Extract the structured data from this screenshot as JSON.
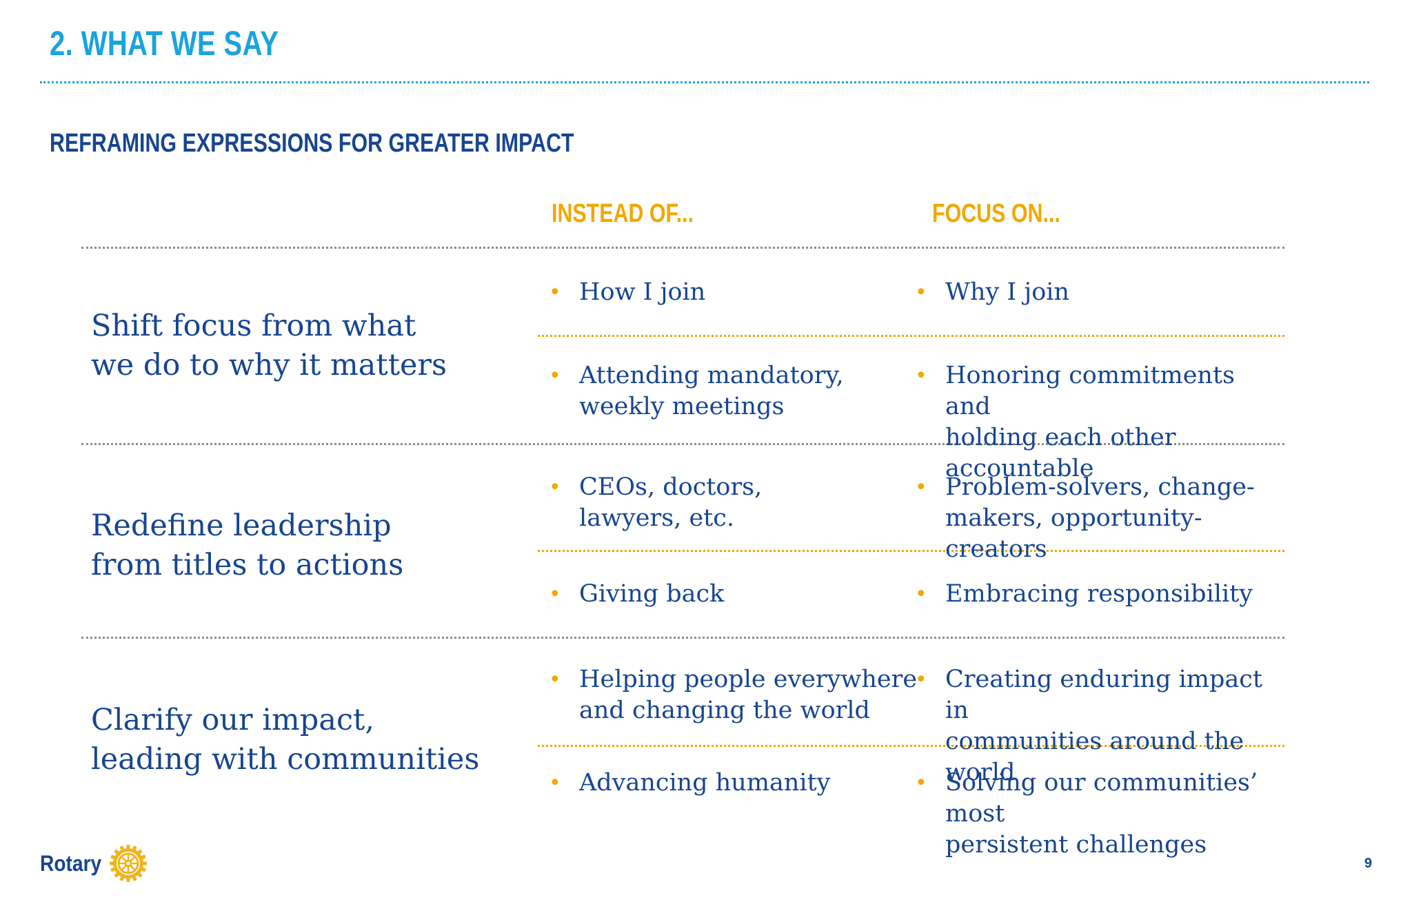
{
  "slide": {
    "title": "2. WHAT WE SAY",
    "subtitle": "REFRAMING EXPRESSIONS FOR GREATER IMPACT",
    "page_number": "9"
  },
  "columns": {
    "instead_of": "INSTEAD OF...",
    "focus_on": "FOCUS ON..."
  },
  "sections": [
    {
      "label": "Shift focus from what\nwe do to why it matters",
      "rows": [
        {
          "instead": "How I join",
          "focus": "Why I join"
        },
        {
          "instead": "Attending mandatory,\nweekly meetings",
          "focus": "Honoring commitments and\nholding each other accountable"
        }
      ]
    },
    {
      "label": "Redefine leadership\nfrom titles to actions",
      "rows": [
        {
          "instead": "CEOs, doctors,\nlawyers, etc.",
          "focus": "Problem-solvers, change-\nmakers, opportunity-creators"
        },
        {
          "instead": "Giving back",
          "focus": "Embracing responsibility"
        }
      ]
    },
    {
      "label": "Clarify our impact,\nleading with communities",
      "rows": [
        {
          "instead": "Helping people everywhere\nand changing the world",
          "focus": "Creating enduring impact in\ncommunities around the world"
        },
        {
          "instead": "Advancing humanity",
          "focus": "Solving our communities’ most\npersistent challenges"
        }
      ]
    }
  ],
  "bullet": "•",
  "logo": {
    "wordmark": "Rotary",
    "icon": "rotary-wheel-icon"
  },
  "colors": {
    "title_blue": "#1aa3dd",
    "navy": "#17458f",
    "gold": "#f0a800",
    "gray_rule": "#8c8c8c"
  }
}
